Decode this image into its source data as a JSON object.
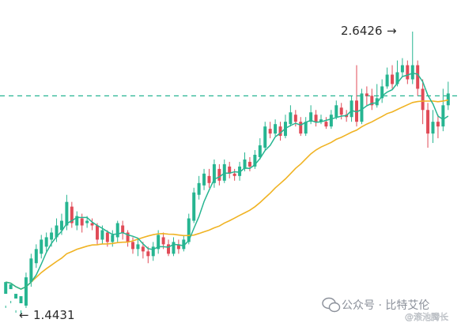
{
  "chart_data": {
    "type": "candlestick",
    "high_label": "2.6426",
    "low_label": "1.4431",
    "high_value": 2.6426,
    "low_value": 1.4431,
    "reference_line_value": 2.37,
    "ma_fast_color": "#26b591",
    "ma_slow_color": "#f0b323",
    "up_color": "#26b591",
    "down_color": "#e04b57",
    "dashed_line_color": "#26b591",
    "grid": false,
    "candles": [
      [
        1.53,
        1.58,
        1.48,
        1.47
      ],
      [
        1.55,
        1.57,
        1.5,
        1.49
      ],
      [
        1.51,
        1.53,
        1.46,
        1.45
      ],
      [
        1.49,
        1.52,
        1.46,
        1.4431
      ],
      [
        1.48,
        1.6,
        1.62,
        1.47
      ],
      [
        1.58,
        1.68,
        1.7,
        1.56
      ],
      [
        1.66,
        1.72,
        1.74,
        1.64
      ],
      [
        1.7,
        1.76,
        1.78,
        1.68
      ],
      [
        1.73,
        1.77,
        1.79,
        1.71
      ],
      [
        1.76,
        1.79,
        1.81,
        1.73
      ],
      [
        1.77,
        1.82,
        1.85,
        1.75
      ],
      [
        1.8,
        1.84,
        1.87,
        1.78
      ],
      [
        1.82,
        1.92,
        1.95,
        1.8
      ],
      [
        1.9,
        1.83,
        1.92,
        1.81
      ],
      [
        1.82,
        1.86,
        1.88,
        1.8
      ],
      [
        1.85,
        1.82,
        1.87,
        1.79
      ],
      [
        1.83,
        1.84,
        1.86,
        1.81
      ],
      [
        1.83,
        1.82,
        1.85,
        1.8
      ],
      [
        1.82,
        1.76,
        1.83,
        1.74
      ],
      [
        1.76,
        1.8,
        1.82,
        1.74
      ],
      [
        1.79,
        1.75,
        1.8,
        1.73
      ],
      [
        1.75,
        1.78,
        1.8,
        1.73
      ],
      [
        1.77,
        1.83,
        1.84,
        1.75
      ],
      [
        1.82,
        1.79,
        1.84,
        1.76
      ],
      [
        1.79,
        1.75,
        1.8,
        1.73
      ],
      [
        1.75,
        1.72,
        1.77,
        1.7
      ],
      [
        1.72,
        1.74,
        1.76,
        1.69
      ],
      [
        1.73,
        1.71,
        1.75,
        1.68
      ],
      [
        1.71,
        1.69,
        1.73,
        1.66
      ],
      [
        1.69,
        1.73,
        1.75,
        1.67
      ],
      [
        1.72,
        1.78,
        1.8,
        1.7
      ],
      [
        1.77,
        1.74,
        1.79,
        1.72
      ],
      [
        1.74,
        1.7,
        1.76,
        1.69
      ],
      [
        1.7,
        1.75,
        1.77,
        1.69
      ],
      [
        1.74,
        1.72,
        1.76,
        1.7
      ],
      [
        1.72,
        1.76,
        1.78,
        1.71
      ],
      [
        1.75,
        1.85,
        1.87,
        1.74
      ],
      [
        1.84,
        1.96,
        1.98,
        1.83
      ],
      [
        1.95,
        2.0,
        2.03,
        1.93
      ],
      [
        1.99,
        2.04,
        2.06,
        1.97
      ],
      [
        2.03,
        2.0,
        2.06,
        1.98
      ],
      [
        2.0,
        2.08,
        2.1,
        1.98
      ],
      [
        2.06,
        2.01,
        2.08,
        1.99
      ],
      [
        2.01,
        2.08,
        2.1,
        2.0
      ],
      [
        2.07,
        2.04,
        2.09,
        2.02
      ],
      [
        2.04,
        2.03,
        2.06,
        2.01
      ],
      [
        2.03,
        2.07,
        2.09,
        2.01
      ],
      [
        2.06,
        2.1,
        2.13,
        2.05
      ],
      [
        2.09,
        2.07,
        2.11,
        2.05
      ],
      [
        2.07,
        2.12,
        2.14,
        2.06
      ],
      [
        2.11,
        2.16,
        2.19,
        2.1
      ],
      [
        2.15,
        2.24,
        2.26,
        2.14
      ],
      [
        2.23,
        2.21,
        2.26,
        2.19
      ],
      [
        2.21,
        2.25,
        2.27,
        2.2
      ],
      [
        2.24,
        2.2,
        2.26,
        2.18
      ],
      [
        2.2,
        2.26,
        2.29,
        2.19
      ],
      [
        2.25,
        2.3,
        2.33,
        2.24
      ],
      [
        2.29,
        2.26,
        2.31,
        2.24
      ],
      [
        2.26,
        2.21,
        2.28,
        2.2
      ],
      [
        2.21,
        2.26,
        2.28,
        2.2
      ],
      [
        2.26,
        2.3,
        2.33,
        2.25
      ],
      [
        2.29,
        2.26,
        2.31,
        2.24
      ],
      [
        2.26,
        2.27,
        2.29,
        2.25
      ],
      [
        2.26,
        2.24,
        2.28,
        2.23
      ],
      [
        2.24,
        2.29,
        2.31,
        2.23
      ],
      [
        2.28,
        2.33,
        2.35,
        2.27
      ],
      [
        2.32,
        2.29,
        2.34,
        2.27
      ],
      [
        2.29,
        2.28,
        2.31,
        2.26
      ],
      [
        2.28,
        2.35,
        2.37,
        2.26
      ],
      [
        2.35,
        2.26,
        2.5,
        2.24
      ],
      [
        2.26,
        2.38,
        2.4,
        2.25
      ],
      [
        2.38,
        2.37,
        2.41,
        2.33
      ],
      [
        2.37,
        2.33,
        2.4,
        2.31
      ],
      [
        2.33,
        2.36,
        2.42,
        2.32
      ],
      [
        2.36,
        2.41,
        2.44,
        2.34
      ],
      [
        2.41,
        2.46,
        2.49,
        2.4
      ],
      [
        2.46,
        2.42,
        2.5,
        2.4
      ],
      [
        2.42,
        2.47,
        2.52,
        2.41
      ],
      [
        2.47,
        2.5,
        2.53,
        2.45
      ],
      [
        2.5,
        2.44,
        2.52,
        2.42
      ],
      [
        2.44,
        2.5,
        2.6426,
        2.42
      ],
      [
        2.5,
        2.4,
        2.52,
        2.37
      ],
      [
        2.4,
        2.31,
        2.44,
        2.25
      ],
      [
        2.31,
        2.21,
        2.34,
        2.15
      ],
      [
        2.21,
        2.26,
        2.31,
        2.17
      ],
      [
        2.26,
        2.24,
        2.29,
        2.19
      ],
      [
        2.24,
        2.33,
        2.4,
        2.22
      ],
      [
        2.33,
        2.38,
        2.43,
        2.31
      ]
    ]
  },
  "watermark": {
    "main_text": "公众号 · 比特艾伦",
    "sub_text": "@滚池腾长"
  },
  "icons": {
    "watermark_icon": "wechat-icon",
    "high_arrow": "arrow-right-icon",
    "low_arrow": "arrow-left-icon"
  }
}
